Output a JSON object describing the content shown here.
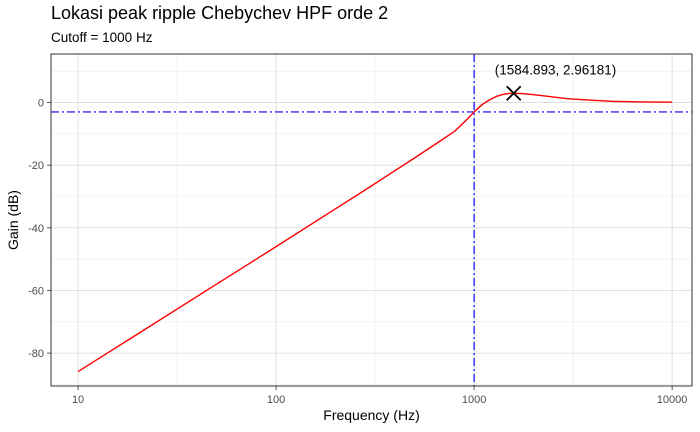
{
  "chart_data": {
    "type": "line",
    "title": "Lokasi peak ripple Chebychev HPF orde 2",
    "subtitle": "Cutoff = 1000 Hz",
    "xlabel": "Frequency (Hz)",
    "ylabel": "Gain (dB)",
    "x_scale": "log10",
    "xlim": [
      7.3,
      12600
    ],
    "ylim": [
      -90.5,
      15.5
    ],
    "x_ticks": [
      10,
      100,
      1000,
      10000
    ],
    "x_tick_labels": [
      "10",
      "100",
      "1000",
      "10000"
    ],
    "y_ticks": [
      0,
      -20,
      -40,
      -60,
      -80
    ],
    "y_tick_labels": [
      "0",
      "-20",
      "-40",
      "-60",
      "-80"
    ],
    "grid": true,
    "series": [
      {
        "color": "#ff0000",
        "x": [
          10,
          20,
          50,
          100,
          200,
          300,
          500,
          700,
          800,
          900,
          1000,
          1100,
          1200,
          1300,
          1400,
          1500,
          1584.893,
          1700,
          1800,
          2000,
          2500,
          3000,
          4000,
          5000,
          7000,
          10000
        ],
        "y": [
          -85.9,
          -73.9,
          -58.0,
          -46.0,
          -33.9,
          -26.8,
          -17.7,
          -11.6,
          -9.1,
          -6.0,
          -3.0,
          -0.6,
          0.9,
          2.0,
          2.6,
          2.9,
          2.96181,
          2.9,
          2.8,
          2.5,
          1.8,
          1.2,
          0.7,
          0.4,
          0.2,
          0.1
        ]
      }
    ],
    "reference_lines": [
      {
        "orientation": "vertical",
        "value": 1000,
        "color": "#0000ff",
        "style": "dashdot"
      },
      {
        "orientation": "horizontal",
        "value": -3,
        "color": "#0000ff",
        "style": "dashdot"
      }
    ],
    "peak": {
      "x": 1584.893,
      "y": 2.96181,
      "label": "(1584.893, 2.96181)",
      "marker": "x"
    }
  }
}
